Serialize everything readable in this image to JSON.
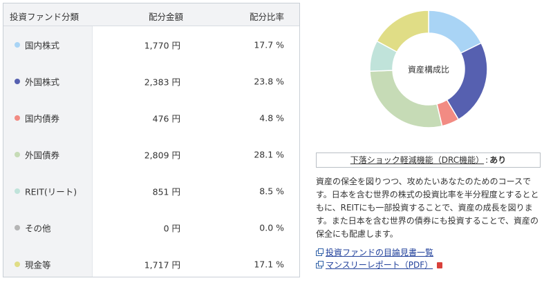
{
  "table": {
    "headers": {
      "name": "投資ファンド分類",
      "amount": "配分金額",
      "ratio": "配分比率"
    },
    "rows": [
      {
        "name": "国内株式",
        "amount": "1,770 円",
        "ratio": "17.7 %",
        "color": "#a9d4f5"
      },
      {
        "name": "外国株式",
        "amount": "2,383 円",
        "ratio": "23.8 %",
        "color": "#5660b0"
      },
      {
        "name": "国内債券",
        "amount": "476 円",
        "ratio": "4.8 %",
        "color": "#f28b83"
      },
      {
        "name": "外国債券",
        "amount": "2,809 円",
        "ratio": "28.1 %",
        "color": "#c6dbb6"
      },
      {
        "name": "REIT(リート)",
        "amount": "851 円",
        "ratio": "8.5 %",
        "color": "#c0e3da"
      },
      {
        "name": "その他",
        "amount": "0 円",
        "ratio": "0.0 %",
        "color": "#b5b5b5"
      },
      {
        "name": "現金等",
        "amount": "1,717 円",
        "ratio": "17.1 %",
        "color": "#e0dd86"
      }
    ]
  },
  "chart_data": {
    "type": "pie",
    "title": "資産構成比",
    "categories": [
      "国内株式",
      "外国株式",
      "国内債券",
      "外国債券",
      "REIT(リート)",
      "その他",
      "現金等"
    ],
    "values": [
      17.7,
      23.8,
      4.8,
      28.1,
      8.5,
      0.0,
      17.1
    ],
    "colors": [
      "#a9d4f5",
      "#5660b0",
      "#f28b83",
      "#c6dbb6",
      "#c0e3da",
      "#b5b5b5",
      "#e0dd86"
    ],
    "donut": true
  },
  "drc": {
    "label": "下落ショック軽減機能（DRC機能）",
    "colon": ":",
    "value": "あり"
  },
  "description": "資産の保全を図りつつ、攻めたいあなたのためのコースです。日本を含む世界の株式の投資比率を半分程度とするとともに、REITにも一部投資することで、資産の成長を図ります。また日本を含む世界の債券にも投資することで、資産の保全にも配慮します。",
  "links": {
    "prospectus": "投資ファンドの目論見書一覧",
    "monthly_report": "マンスリーレポート（PDF）"
  },
  "icons": {
    "external": "external-link-icon",
    "pdf": "pdf-icon",
    "legend": "legend-dot-icon"
  }
}
